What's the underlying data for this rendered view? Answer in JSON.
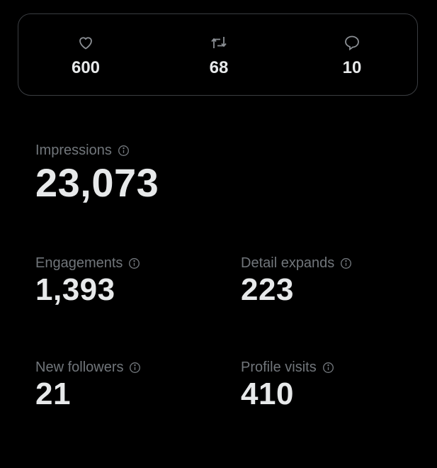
{
  "actions": [
    {
      "icon": "heart-icon",
      "label": "Likes",
      "value": "600"
    },
    {
      "icon": "retweet-icon",
      "label": "Reposts",
      "value": "68"
    },
    {
      "icon": "reply-icon",
      "label": "Replies",
      "value": "10"
    }
  ],
  "metrics": {
    "impressions": {
      "label": "Impressions",
      "value": "23,073"
    },
    "engagements": {
      "label": "Engagements",
      "value": "1,393"
    },
    "detail_expands": {
      "label": "Detail expands",
      "value": "223"
    },
    "new_followers": {
      "label": "New followers",
      "value": "21"
    },
    "profile_visits": {
      "label": "Profile visits",
      "value": "410"
    }
  },
  "colors": {
    "background": "#000000",
    "label": "#71767b",
    "value": "#e7e9ea",
    "border": "#3a3d41"
  }
}
